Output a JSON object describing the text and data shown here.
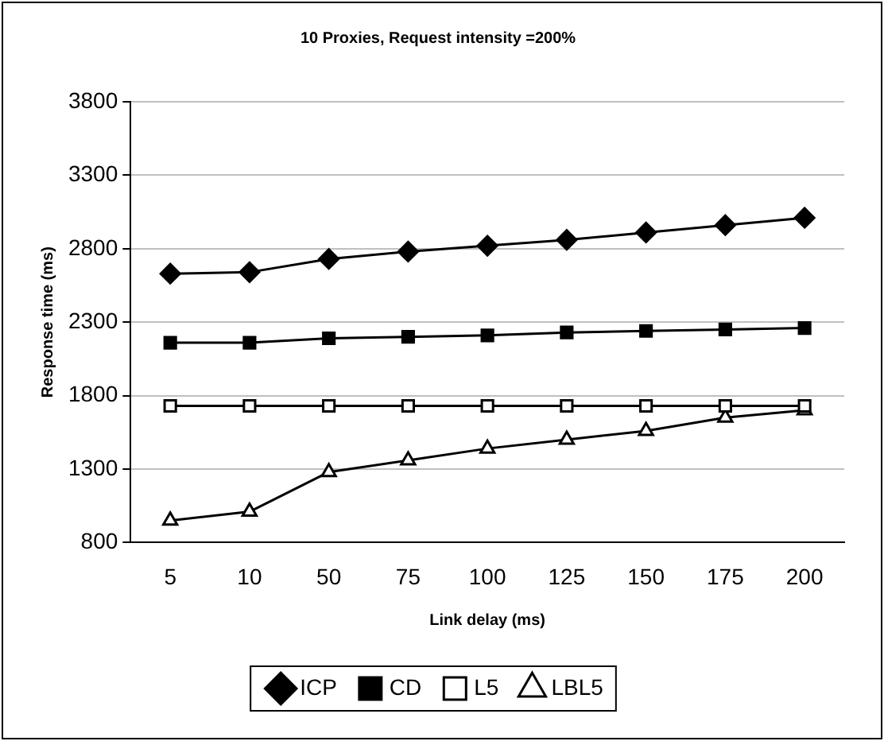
{
  "chart_data": {
    "type": "line",
    "title": "10 Proxies, Request intensity =200%",
    "xlabel": "Link delay (ms)",
    "ylabel": "Response time (ms)",
    "categories": [
      "5",
      "10",
      "50",
      "75",
      "100",
      "125",
      "150",
      "175",
      "200"
    ],
    "series": [
      {
        "name": "ICP",
        "color": "#000000",
        "marker": "diamond",
        "values": [
          2630,
          2640,
          2730,
          2780,
          2820,
          2860,
          2910,
          2960,
          3010
        ]
      },
      {
        "name": "CD",
        "color": "#000000",
        "marker": "square",
        "values": [
          2160,
          2160,
          2190,
          2200,
          2210,
          2230,
          2240,
          2250,
          2260
        ]
      },
      {
        "name": "L5",
        "color": "#000000",
        "colors": [
          "#ffffff",
          "#ffffff",
          "#ffffff",
          "#ffffff",
          "#ffffff",
          "#ffffff",
          "#ffffff",
          "#ffffff",
          "#ffffff"
        ],
        "marker": "square",
        "values": [
          1730,
          1730,
          1730,
          1730,
          1730,
          1730,
          1730,
          1730,
          1730
        ]
      },
      {
        "name": "LBL5",
        "color": "#000000",
        "colors": [
          "#ffffff",
          "#ffffff",
          "#ffffff",
          "#ffffff",
          "#ffffff",
          "#ffffff",
          "#ffffff",
          "#ffffff",
          "#ffffff"
        ],
        "marker": "triangle",
        "values": [
          950,
          1010,
          1280,
          1360,
          1440,
          1500,
          1560,
          1650,
          1700
        ]
      }
    ],
    "ylim": [
      800,
      3800
    ],
    "yticks": [
      800,
      1300,
      1800,
      2300,
      2800,
      3300,
      3800
    ],
    "grid": "y",
    "legend": "bottom",
    "line_style": "solid"
  }
}
